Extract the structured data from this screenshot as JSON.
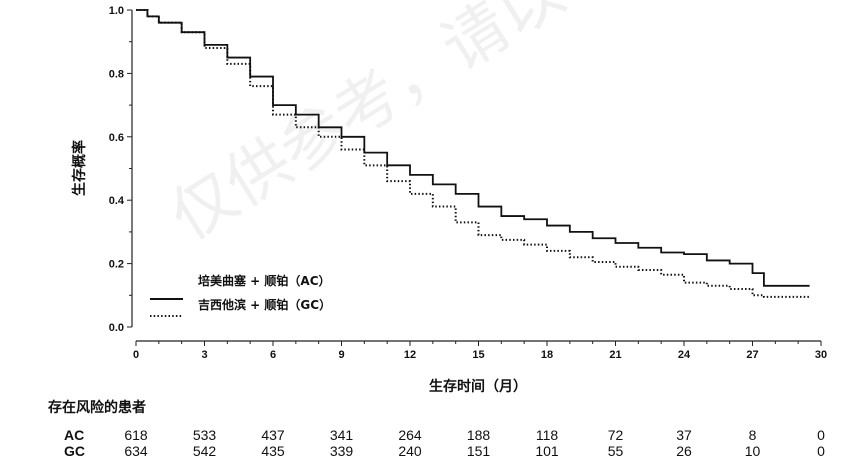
{
  "chart_data": {
    "type": "line",
    "xlabel": "生存时间（月）",
    "ylabel": "生存概率",
    "xlim": [
      0,
      30
    ],
    "ylim": [
      0,
      1.0
    ],
    "x_ticks": [
      "0",
      "3",
      "6",
      "9",
      "12",
      "15",
      "18",
      "21",
      "24",
      "27",
      "30"
    ],
    "y_ticks": [
      "0.0",
      "0.2",
      "0.4",
      "0.6",
      "0.8",
      "1.0"
    ],
    "legend_position": "bottom-left",
    "series": [
      {
        "name": "培美曲塞 + 顺铂（AC）",
        "style": "solid",
        "x": [
          0,
          0.5,
          1,
          2,
          3,
          4,
          5,
          6,
          7,
          8,
          9,
          10,
          11,
          12,
          13,
          14,
          15,
          16,
          17,
          18,
          19,
          20,
          21,
          22,
          23,
          24,
          25,
          26,
          27,
          27.5,
          29.5
        ],
        "y": [
          1.0,
          0.98,
          0.96,
          0.93,
          0.89,
          0.85,
          0.79,
          0.7,
          0.67,
          0.63,
          0.6,
          0.55,
          0.51,
          0.48,
          0.45,
          0.42,
          0.38,
          0.35,
          0.34,
          0.32,
          0.3,
          0.28,
          0.265,
          0.25,
          0.235,
          0.23,
          0.21,
          0.2,
          0.17,
          0.13,
          0.13
        ]
      },
      {
        "name": "吉西他滨 + 顺铂（GC）",
        "style": "dotted",
        "x": [
          0,
          0.5,
          1,
          2,
          3,
          4,
          5,
          6,
          7,
          8,
          9,
          10,
          11,
          12,
          13,
          14,
          15,
          16,
          17,
          18,
          19,
          20,
          21,
          22,
          23,
          24,
          25,
          26,
          27,
          27.5,
          29.5
        ],
        "y": [
          1.0,
          0.98,
          0.96,
          0.93,
          0.88,
          0.83,
          0.76,
          0.67,
          0.63,
          0.6,
          0.56,
          0.51,
          0.46,
          0.42,
          0.38,
          0.33,
          0.29,
          0.275,
          0.26,
          0.24,
          0.22,
          0.205,
          0.19,
          0.18,
          0.165,
          0.14,
          0.13,
          0.12,
          0.1,
          0.095,
          0.095
        ]
      }
    ]
  },
  "risk_table": {
    "title": "存在风险的患者",
    "rows": [
      {
        "name": "AC",
        "values": [
          "618",
          "533",
          "437",
          "341",
          "264",
          "188",
          "118",
          "72",
          "37",
          "8",
          "0"
        ]
      },
      {
        "name": "GC",
        "values": [
          "634",
          "542",
          "435",
          "339",
          "240",
          "151",
          "101",
          "55",
          "26",
          "10",
          "0"
        ]
      }
    ]
  },
  "watermark": "仅供参考，请以包装中所附说明书"
}
